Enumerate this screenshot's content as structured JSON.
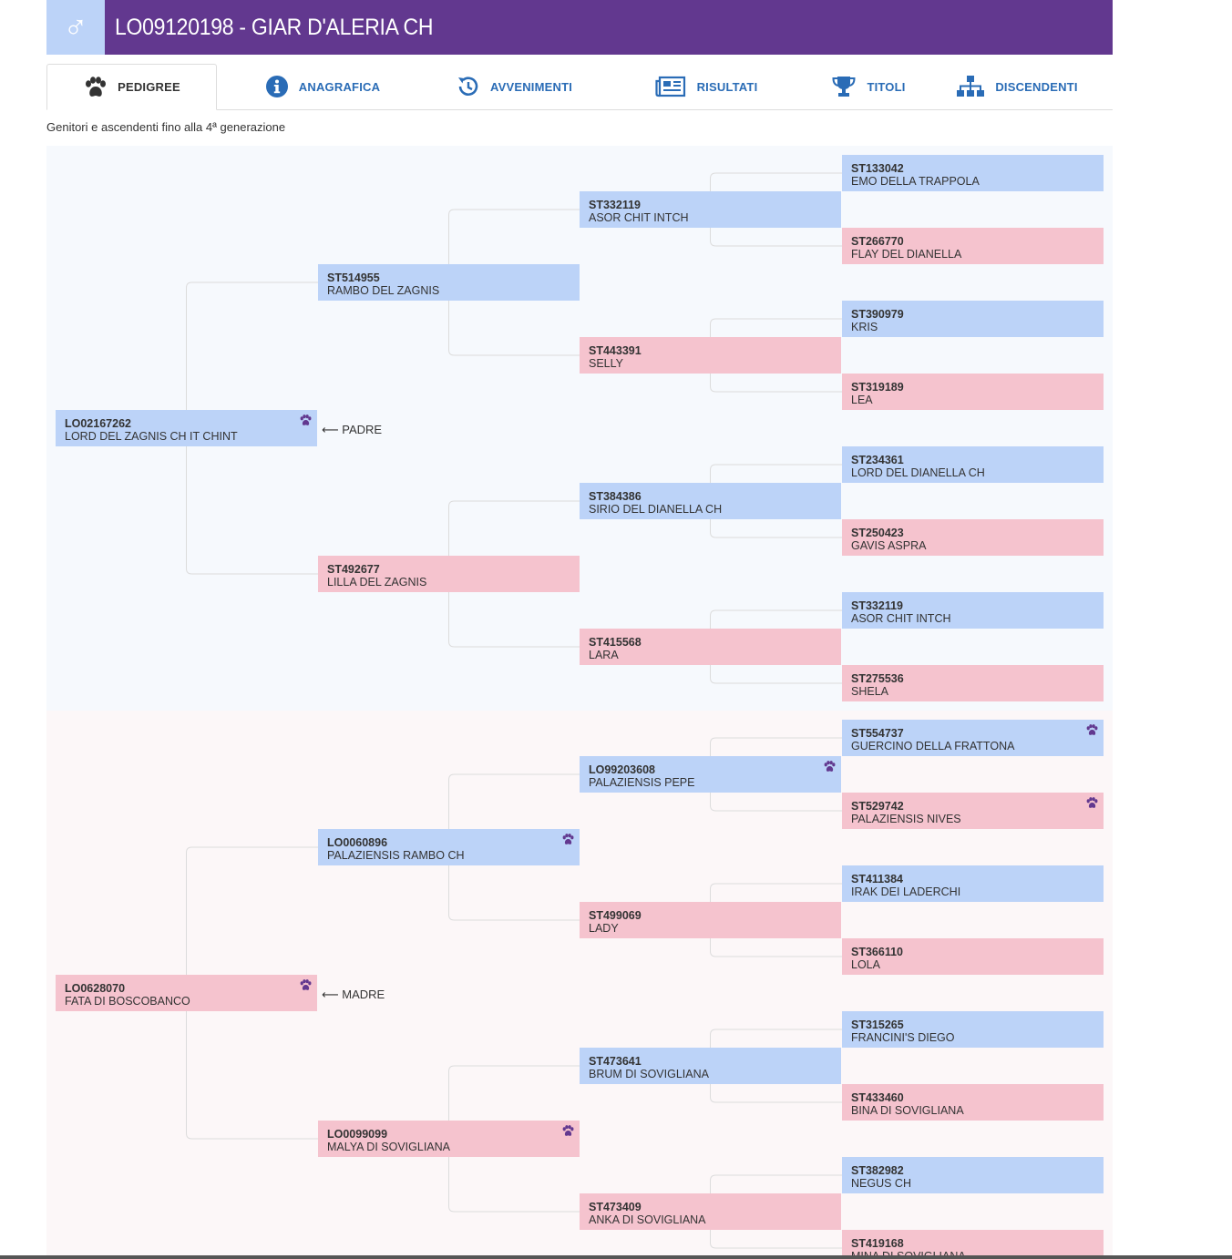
{
  "header": {
    "sex_icon": "male-symbol",
    "sex_glyph": "♂",
    "title": "LO09120198 - GIAR D'ALERIA CH",
    "accent_color": "#62388f"
  },
  "tabs": [
    {
      "label": "PEDIGREE",
      "icon": "paw-icon",
      "active": true
    },
    {
      "label": "ANAGRAFICA",
      "icon": "info-icon",
      "active": false
    },
    {
      "label": "AVVENIMENTI",
      "icon": "history-icon",
      "active": false
    },
    {
      "label": "RISULTATI",
      "icon": "newspaper-icon",
      "active": false
    },
    {
      "label": "TITOLI",
      "icon": "trophy-icon",
      "active": false
    },
    {
      "label": "DISCENDENTI",
      "icon": "sitemap-icon",
      "active": false
    }
  ],
  "subtitle": "Genitori e ascendenti fino alla 4ª generazione",
  "colors": {
    "male": "#bcd3f8",
    "female": "#f5c3ce"
  },
  "pedigree": {
    "sire_label": "⟵ PADRE",
    "dam_label": "⟵ MADRE",
    "dogs": [
      {
        "code": "LO02167262",
        "name": "LORD DEL ZAGNIS CH IT CHINT",
        "sex": "m",
        "paw": true
      },
      {
        "code": "ST514955",
        "name": "RAMBO DEL ZAGNIS",
        "sex": "m",
        "paw": false
      },
      {
        "code": "ST332119",
        "name": "ASOR CHIT INTCH",
        "sex": "m",
        "paw": false
      },
      {
        "code": "ST133042",
        "name": "EMO DELLA TRAPPOLA",
        "sex": "m",
        "paw": false
      },
      {
        "code": "ST266770",
        "name": "FLAY DEL DIANELLA",
        "sex": "f",
        "paw": false
      },
      {
        "code": "ST443391",
        "name": "SELLY",
        "sex": "f",
        "paw": false
      },
      {
        "code": "ST390979",
        "name": "KRIS",
        "sex": "m",
        "paw": false
      },
      {
        "code": "ST319189",
        "name": "LEA",
        "sex": "f",
        "paw": false
      },
      {
        "code": "ST492677",
        "name": "LILLA DEL ZAGNIS",
        "sex": "f",
        "paw": false
      },
      {
        "code": "ST384386",
        "name": "SIRIO DEL DIANELLA CH",
        "sex": "m",
        "paw": false
      },
      {
        "code": "ST234361",
        "name": "LORD DEL DIANELLA CH",
        "sex": "m",
        "paw": false
      },
      {
        "code": "ST250423",
        "name": "GAVIS ASPRA",
        "sex": "f",
        "paw": false
      },
      {
        "code": "ST415568",
        "name": "LARA",
        "sex": "f",
        "paw": false
      },
      {
        "code": "ST332119",
        "name": "ASOR CHIT INTCH",
        "sex": "m",
        "paw": false
      },
      {
        "code": "ST275536",
        "name": "SHELA",
        "sex": "f",
        "paw": false
      },
      {
        "code": "LO0628070",
        "name": "FATA DI BOSCOBANCO",
        "sex": "f",
        "paw": true
      },
      {
        "code": "LO0060896",
        "name": "PALAZIENSIS RAMBO CH",
        "sex": "m",
        "paw": true
      },
      {
        "code": "LO99203608",
        "name": "PALAZIENSIS PEPE",
        "sex": "m",
        "paw": true
      },
      {
        "code": "ST554737",
        "name": "GUERCINO DELLA FRATTONA",
        "sex": "m",
        "paw": true
      },
      {
        "code": "ST529742",
        "name": "PALAZIENSIS NIVES",
        "sex": "f",
        "paw": true
      },
      {
        "code": "ST499069",
        "name": "LADY",
        "sex": "f",
        "paw": false
      },
      {
        "code": "ST411384",
        "name": "IRAK DEI LADERCHI",
        "sex": "m",
        "paw": false
      },
      {
        "code": "ST366110",
        "name": "LOLA",
        "sex": "f",
        "paw": false
      },
      {
        "code": "LO0099099",
        "name": "MALYA DI SOVIGLIANA",
        "sex": "f",
        "paw": true
      },
      {
        "code": "ST473641",
        "name": "BRUM DI SOVIGLIANA",
        "sex": "m",
        "paw": false
      },
      {
        "code": "ST315265",
        "name": "FRANCINI'S DIEGO",
        "sex": "m",
        "paw": false
      },
      {
        "code": "ST433460",
        "name": "BINA DI SOVIGLIANA",
        "sex": "f",
        "paw": false
      },
      {
        "code": "ST473409",
        "name": "ANKA DI SOVIGLIANA",
        "sex": "f",
        "paw": false
      },
      {
        "code": "ST382982",
        "name": "NEGUS CH",
        "sex": "m",
        "paw": false
      },
      {
        "code": "ST419168",
        "name": "MINA DI SOVIGLIANA",
        "sex": "f",
        "paw": false
      }
    ]
  }
}
